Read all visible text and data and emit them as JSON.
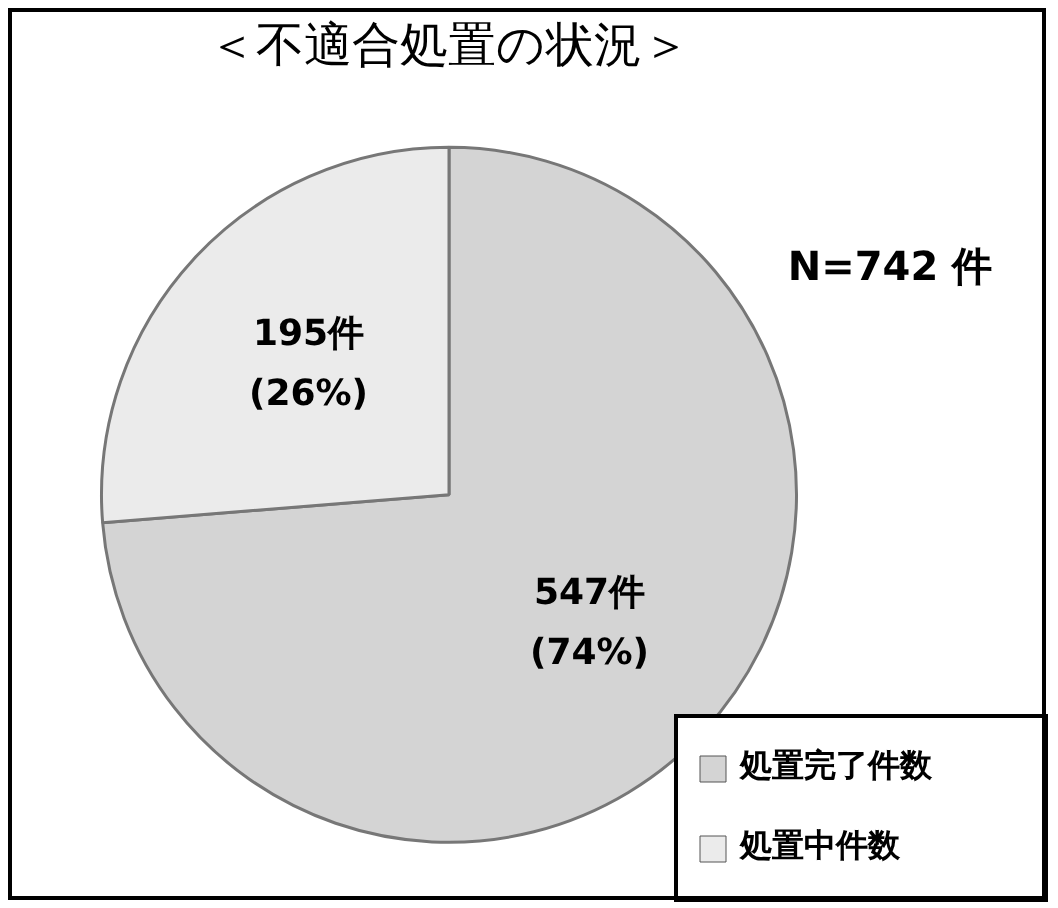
{
  "chart_data": {
    "type": "pie",
    "title": "＜不適合処置の状況＞",
    "categories": [
      "処置完了件数",
      "処置中件数"
    ],
    "values": [
      547,
      195
    ],
    "colors": [
      "#d4d4d4",
      "#ebebeb"
    ],
    "value_labels": [
      "547件\n(74%)",
      "195件\n(26%)"
    ],
    "annotations": [
      "N=742 件"
    ],
    "legend": "bottom right"
  }
}
